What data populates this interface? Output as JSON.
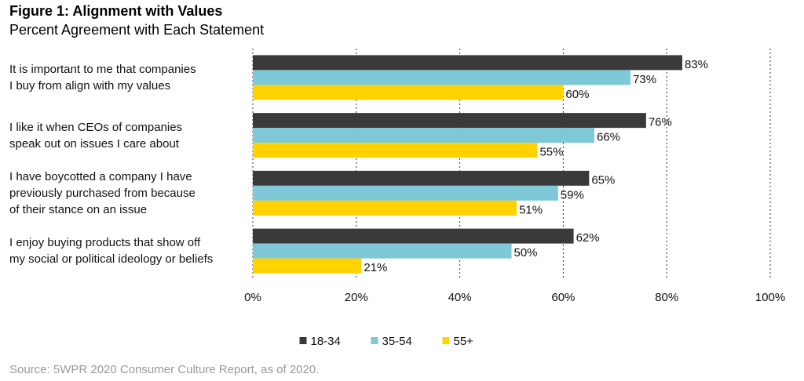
{
  "chart_data": {
    "type": "hbar",
    "title": "Figure 1: Alignment with Values",
    "subtitle": "Percent Agreement with Each Statement",
    "source": "Source: 5WPR 2020 Consumer Culture Report, as of 2020.",
    "categories": [
      "It is important to me that companies\nI buy from align with my values",
      "I like it when CEOs of companies\nspeak out on issues I care about",
      "I have boycotted a company I have\npreviously purchased from because\nof their stance on an issue",
      "I enjoy buying products that show off\nmy social or political ideology or beliefs"
    ],
    "series": [
      {
        "name": "18-34",
        "color": "#3a3a3a",
        "values": [
          83,
          76,
          65,
          62
        ],
        "value_labels": [
          "83%",
          "76%",
          "65%",
          "62%"
        ]
      },
      {
        "name": "35-54",
        "color": "#7ec8d8",
        "values": [
          73,
          66,
          59,
          50
        ],
        "value_labels": [
          "73%",
          "66%",
          "59%",
          "50%"
        ]
      },
      {
        "name": "55+",
        "color": "#ffd200",
        "values": [
          60,
          55,
          51,
          21
        ],
        "value_labels": [
          "60%",
          "55%",
          "51%",
          "21%"
        ]
      }
    ],
    "xlim": [
      0,
      100
    ],
    "xticks": [
      {
        "value": 0,
        "label": "0%"
      },
      {
        "value": 20,
        "label": "20%"
      },
      {
        "value": 40,
        "label": "40%"
      },
      {
        "value": 60,
        "label": "60%"
      },
      {
        "value": 80,
        "label": "80%"
      },
      {
        "value": 100,
        "label": "100%"
      }
    ],
    "grid": true,
    "legend": "bottom"
  }
}
